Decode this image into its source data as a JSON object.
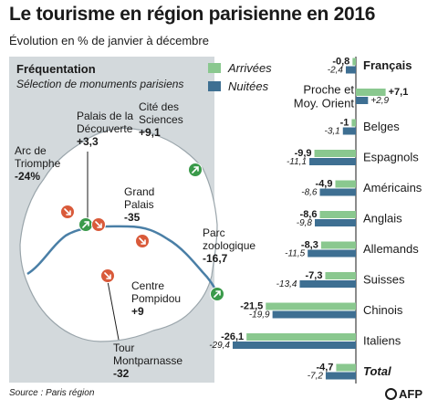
{
  "title": "Le tourisme en région parisienne en 2016",
  "subtitle": "Évolution en % de janvier à décembre",
  "source": "Source : Paris région",
  "credit": "AFP",
  "colors": {
    "arrivals": "#8ac88f",
    "nights": "#3e6f92",
    "map_bg": "#d3d9dc",
    "up": "#3a9a4a",
    "down": "#d95a3a"
  },
  "map": {
    "heading": "Fréquentation",
    "subheading": "Sélection de monuments parisiens",
    "monuments": [
      {
        "name": "Arc de Triomphe",
        "value": "-24%",
        "trend": "down"
      },
      {
        "name": "Palais de la Découverte",
        "value": "+3,3",
        "trend": "up"
      },
      {
        "name": "Cité des Sciences",
        "value": "+9,1",
        "trend": "up"
      },
      {
        "name": "Grand Palais",
        "value": "-35",
        "trend": "down"
      },
      {
        "name": "Parc zoologique",
        "value": "-16,7",
        "trend": "down"
      },
      {
        "name": "Centre Pompidou",
        "value": "+9",
        "trend": "up"
      },
      {
        "name": "Tour Montparnasse",
        "value": "-32",
        "trend": "down"
      }
    ]
  },
  "legend": {
    "arrivals": "Arrivées",
    "nights": "Nuitées"
  },
  "chart_data": {
    "type": "bar",
    "orientation": "horizontal",
    "categories": [
      "Français",
      "Proche et Moy. Orient",
      "Belges",
      "Espagnols",
      "Américains",
      "Anglais",
      "Allemands",
      "Suisses",
      "Chinois",
      "Italiens",
      "Total"
    ],
    "series": [
      {
        "name": "Arrivées",
        "values": [
          -0.8,
          7.1,
          -1,
          -9.9,
          -4.9,
          -8.6,
          -8.3,
          -7.3,
          -21.5,
          -26.1,
          -4.7
        ],
        "labels": [
          "-0,8",
          "+7,1",
          "-1",
          "-9,9",
          "-4,9",
          "-8,6",
          "-8,3",
          "-7,3",
          "-21,5",
          "-26,1",
          "-4,7"
        ]
      },
      {
        "name": "Nuitées",
        "values": [
          -2.4,
          2.9,
          -3.1,
          -11.1,
          -8.6,
          -9.8,
          -11.5,
          -13.4,
          -19.9,
          -29.4,
          -7.2
        ],
        "labels": [
          "-2,4",
          "+2,9",
          "-3,1",
          "-11,1",
          "-8,6",
          "-9,8",
          "-11,5",
          "-13,4",
          "-19,9",
          "-29,4",
          "-7,2"
        ]
      }
    ],
    "bold_categories": [
      "Français",
      "Total"
    ],
    "italic_categories": [
      "Total"
    ]
  }
}
